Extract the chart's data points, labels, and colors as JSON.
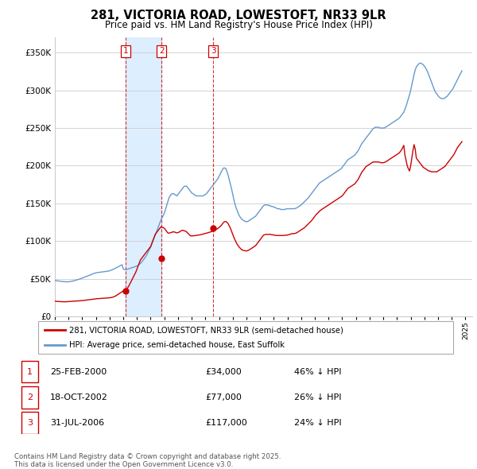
{
  "title": "281, VICTORIA ROAD, LOWESTOFT, NR33 9LR",
  "subtitle": "Price paid vs. HM Land Registry's House Price Index (HPI)",
  "legend_label_red": "281, VICTORIA ROAD, LOWESTOFT, NR33 9LR (semi-detached house)",
  "legend_label_blue": "HPI: Average price, semi-detached house, East Suffolk",
  "footer": "Contains HM Land Registry data © Crown copyright and database right 2025.\nThis data is licensed under the Open Government Licence v3.0.",
  "transactions": [
    {
      "num": 1,
      "date": "25-FEB-2000",
      "price": 34000,
      "pct": "46% ↓ HPI",
      "year_x": 2000.15
    },
    {
      "num": 2,
      "date": "18-OCT-2002",
      "price": 77000,
      "pct": "26% ↓ HPI",
      "year_x": 2002.8
    },
    {
      "num": 3,
      "date": "31-JUL-2006",
      "price": 117000,
      "pct": "24% ↓ HPI",
      "year_x": 2006.58
    }
  ],
  "red_color": "#cc0000",
  "blue_color": "#6699cc",
  "shade_color": "#ddeeff",
  "background": "#ffffff",
  "grid_color": "#cccccc",
  "ylim": [
    0,
    370000
  ],
  "yticks": [
    0,
    50000,
    100000,
    150000,
    200000,
    250000,
    300000,
    350000
  ],
  "xlim": [
    1995.0,
    2025.5
  ],
  "hpi_years": [
    1995.0,
    1995.083,
    1995.167,
    1995.25,
    1995.333,
    1995.417,
    1995.5,
    1995.583,
    1995.667,
    1995.75,
    1995.833,
    1995.917,
    1996.0,
    1996.083,
    1996.167,
    1996.25,
    1996.333,
    1996.417,
    1996.5,
    1996.583,
    1996.667,
    1996.75,
    1996.833,
    1996.917,
    1997.0,
    1997.083,
    1997.167,
    1997.25,
    1997.333,
    1997.417,
    1997.5,
    1997.583,
    1997.667,
    1997.75,
    1997.833,
    1997.917,
    1998.0,
    1998.083,
    1998.167,
    1998.25,
    1998.333,
    1998.417,
    1998.5,
    1998.583,
    1998.667,
    1998.75,
    1998.833,
    1998.917,
    1999.0,
    1999.083,
    1999.167,
    1999.25,
    1999.333,
    1999.417,
    1999.5,
    1999.583,
    1999.667,
    1999.75,
    1999.833,
    1999.917,
    2000.0,
    2000.083,
    2000.167,
    2000.25,
    2000.333,
    2000.417,
    2000.5,
    2000.583,
    2000.667,
    2000.75,
    2000.833,
    2000.917,
    2001.0,
    2001.083,
    2001.167,
    2001.25,
    2001.333,
    2001.417,
    2001.5,
    2001.583,
    2001.667,
    2001.75,
    2001.833,
    2001.917,
    2002.0,
    2002.083,
    2002.167,
    2002.25,
    2002.333,
    2002.417,
    2002.5,
    2002.583,
    2002.667,
    2002.75,
    2002.833,
    2002.917,
    2003.0,
    2003.083,
    2003.167,
    2003.25,
    2003.333,
    2003.417,
    2003.5,
    2003.583,
    2003.667,
    2003.75,
    2003.833,
    2003.917,
    2004.0,
    2004.083,
    2004.167,
    2004.25,
    2004.333,
    2004.417,
    2004.5,
    2004.583,
    2004.667,
    2004.75,
    2004.833,
    2004.917,
    2005.0,
    2005.083,
    2005.167,
    2005.25,
    2005.333,
    2005.417,
    2005.5,
    2005.583,
    2005.667,
    2005.75,
    2005.833,
    2005.917,
    2006.0,
    2006.083,
    2006.167,
    2006.25,
    2006.333,
    2006.417,
    2006.5,
    2006.583,
    2006.667,
    2006.75,
    2006.833,
    2006.917,
    2007.0,
    2007.083,
    2007.167,
    2007.25,
    2007.333,
    2007.417,
    2007.5,
    2007.583,
    2007.667,
    2007.75,
    2007.833,
    2007.917,
    2008.0,
    2008.083,
    2008.167,
    2008.25,
    2008.333,
    2008.417,
    2008.5,
    2008.583,
    2008.667,
    2008.75,
    2008.833,
    2008.917,
    2009.0,
    2009.083,
    2009.167,
    2009.25,
    2009.333,
    2009.417,
    2009.5,
    2009.583,
    2009.667,
    2009.75,
    2009.833,
    2009.917,
    2010.0,
    2010.083,
    2010.167,
    2010.25,
    2010.333,
    2010.417,
    2010.5,
    2010.583,
    2010.667,
    2010.75,
    2010.833,
    2010.917,
    2011.0,
    2011.083,
    2011.167,
    2011.25,
    2011.333,
    2011.417,
    2011.5,
    2011.583,
    2011.667,
    2011.75,
    2011.833,
    2011.917,
    2012.0,
    2012.083,
    2012.167,
    2012.25,
    2012.333,
    2012.417,
    2012.5,
    2012.583,
    2012.667,
    2012.75,
    2012.833,
    2012.917,
    2013.0,
    2013.083,
    2013.167,
    2013.25,
    2013.333,
    2013.417,
    2013.5,
    2013.583,
    2013.667,
    2013.75,
    2013.833,
    2013.917,
    2014.0,
    2014.083,
    2014.167,
    2014.25,
    2014.333,
    2014.417,
    2014.5,
    2014.583,
    2014.667,
    2014.75,
    2014.833,
    2014.917,
    2015.0,
    2015.083,
    2015.167,
    2015.25,
    2015.333,
    2015.417,
    2015.5,
    2015.583,
    2015.667,
    2015.75,
    2015.833,
    2015.917,
    2016.0,
    2016.083,
    2016.167,
    2016.25,
    2016.333,
    2016.417,
    2016.5,
    2016.583,
    2016.667,
    2016.75,
    2016.833,
    2016.917,
    2017.0,
    2017.083,
    2017.167,
    2017.25,
    2017.333,
    2017.417,
    2017.5,
    2017.583,
    2017.667,
    2017.75,
    2017.833,
    2017.917,
    2018.0,
    2018.083,
    2018.167,
    2018.25,
    2018.333,
    2018.417,
    2018.5,
    2018.583,
    2018.667,
    2018.75,
    2018.833,
    2018.917,
    2019.0,
    2019.083,
    2019.167,
    2019.25,
    2019.333,
    2019.417,
    2019.5,
    2019.583,
    2019.667,
    2019.75,
    2019.833,
    2019.917,
    2020.0,
    2020.083,
    2020.167,
    2020.25,
    2020.333,
    2020.417,
    2020.5,
    2020.583,
    2020.667,
    2020.75,
    2020.833,
    2020.917,
    2021.0,
    2021.083,
    2021.167,
    2021.25,
    2021.333,
    2021.417,
    2021.5,
    2021.583,
    2021.667,
    2021.75,
    2021.833,
    2021.917,
    2022.0,
    2022.083,
    2022.167,
    2022.25,
    2022.333,
    2022.417,
    2022.5,
    2022.583,
    2022.667,
    2022.75,
    2022.833,
    2022.917,
    2023.0,
    2023.083,
    2023.167,
    2023.25,
    2023.333,
    2023.417,
    2023.5,
    2023.583,
    2023.667,
    2023.75,
    2023.833,
    2023.917,
    2024.0,
    2024.083,
    2024.167,
    2024.25,
    2024.333,
    2024.417,
    2024.5,
    2024.583,
    2024.667,
    2024.75
  ],
  "hpi_vals": [
    48000,
    47700,
    47400,
    47200,
    47000,
    46800,
    46600,
    46400,
    46300,
    46200,
    46100,
    46100,
    46200,
    46400,
    46600,
    46900,
    47200,
    47600,
    48000,
    48500,
    49000,
    49500,
    50000,
    50500,
    51000,
    51600,
    52200,
    52800,
    53400,
    54000,
    54600,
    55200,
    55800,
    56400,
    57000,
    57500,
    58000,
    58300,
    58500,
    58700,
    58900,
    59100,
    59300,
    59500,
    59700,
    59900,
    60100,
    60300,
    60800,
    61300,
    61900,
    62500,
    63200,
    64000,
    64800,
    65600,
    66400,
    67200,
    68000,
    68800,
    63000,
    62500,
    62000,
    62500,
    63000,
    63500,
    64000,
    64500,
    65000,
    65500,
    66000,
    66500,
    67000,
    68000,
    69000,
    70500,
    72000,
    74000,
    76000,
    78000,
    80500,
    83000,
    86000,
    89000,
    92000,
    96000,
    100000,
    104000,
    108000,
    112000,
    116000,
    120000,
    124000,
    128000,
    131000,
    134000,
    137000,
    142000,
    147000,
    152000,
    157000,
    160000,
    162000,
    163000,
    163000,
    162000,
    161000,
    160000,
    162000,
    164000,
    166000,
    168000,
    170000,
    172000,
    173000,
    173000,
    172000,
    170000,
    168000,
    166000,
    164000,
    163000,
    162000,
    161000,
    160000,
    160000,
    160000,
    160000,
    160000,
    160000,
    160000,
    161000,
    162000,
    163000,
    165000,
    167000,
    169000,
    171000,
    173000,
    175000,
    177000,
    179000,
    181000,
    183000,
    186000,
    189000,
    192000,
    195000,
    197000,
    197000,
    196000,
    192000,
    187000,
    181000,
    175000,
    169000,
    162000,
    155000,
    149000,
    144000,
    140000,
    136000,
    133000,
    131000,
    129000,
    128000,
    127000,
    126000,
    126000,
    126000,
    127000,
    128000,
    129000,
    130000,
    131000,
    132000,
    133000,
    135000,
    137000,
    139000,
    141000,
    143000,
    145000,
    147000,
    148000,
    148000,
    148000,
    148000,
    147000,
    147000,
    146000,
    146000,
    145000,
    145000,
    144000,
    143000,
    143000,
    143000,
    142000,
    142000,
    142000,
    142000,
    142000,
    143000,
    143000,
    143000,
    143000,
    143000,
    143000,
    143000,
    143000,
    143500,
    144000,
    145000,
    146000,
    147000,
    148000,
    149500,
    151000,
    152500,
    154000,
    155500,
    157000,
    159000,
    161000,
    163000,
    165000,
    167000,
    169000,
    171000,
    173000,
    175000,
    177000,
    178000,
    179000,
    180000,
    181000,
    182000,
    183000,
    184000,
    185000,
    186000,
    187000,
    188000,
    189000,
    190000,
    191000,
    192000,
    193000,
    194000,
    195000,
    196000,
    198000,
    200000,
    202000,
    204000,
    206000,
    208000,
    209000,
    210000,
    211000,
    212000,
    213000,
    214000,
    216000,
    218000,
    220000,
    223000,
    226000,
    229000,
    231000,
    233000,
    235000,
    237000,
    239000,
    241000,
    243000,
    245000,
    247000,
    249000,
    250000,
    251000,
    251000,
    251000,
    251000,
    250000,
    250000,
    250000,
    250000,
    250000,
    251000,
    252000,
    253000,
    254000,
    255000,
    256000,
    257000,
    258000,
    259000,
    260000,
    261000,
    262000,
    263000,
    265000,
    267000,
    269000,
    271000,
    275000,
    279000,
    284000,
    289000,
    294000,
    300000,
    307000,
    314000,
    321000,
    327000,
    331000,
    333000,
    335000,
    336000,
    336000,
    335000,
    334000,
    332000,
    330000,
    327000,
    324000,
    320000,
    316000,
    312000,
    308000,
    304000,
    300000,
    297000,
    295000,
    293000,
    291000,
    290000,
    289000,
    289000,
    289000,
    290000,
    291000,
    292000,
    294000,
    296000,
    298000,
    300000,
    302000,
    305000,
    308000,
    311000,
    314000,
    317000,
    320000,
    323000,
    326000
  ],
  "red_years": [
    1995.0,
    1995.083,
    1995.167,
    1995.25,
    1995.333,
    1995.417,
    1995.5,
    1995.583,
    1995.667,
    1995.75,
    1995.833,
    1995.917,
    1996.0,
    1996.083,
    1996.167,
    1996.25,
    1996.333,
    1996.417,
    1996.5,
    1996.583,
    1996.667,
    1996.75,
    1996.833,
    1996.917,
    1997.0,
    1997.083,
    1997.167,
    1997.25,
    1997.333,
    1997.417,
    1997.5,
    1997.583,
    1997.667,
    1997.75,
    1997.833,
    1997.917,
    1998.0,
    1998.083,
    1998.167,
    1998.25,
    1998.333,
    1998.417,
    1998.5,
    1998.583,
    1998.667,
    1998.75,
    1998.833,
    1998.917,
    1999.0,
    1999.083,
    1999.167,
    1999.25,
    1999.333,
    1999.417,
    1999.5,
    1999.583,
    1999.667,
    1999.75,
    1999.833,
    1999.917,
    2000.0,
    2000.083,
    2000.167,
    2000.25,
    2000.333,
    2000.417,
    2000.5,
    2000.583,
    2000.667,
    2000.75,
    2000.833,
    2000.917,
    2001.0,
    2001.083,
    2001.167,
    2001.25,
    2001.333,
    2001.417,
    2001.5,
    2001.583,
    2001.667,
    2001.75,
    2001.833,
    2001.917,
    2002.0,
    2002.083,
    2002.167,
    2002.25,
    2002.333,
    2002.417,
    2002.5,
    2002.583,
    2002.667,
    2002.75,
    2002.833,
    2002.917,
    2003.0,
    2003.083,
    2003.167,
    2003.25,
    2003.333,
    2003.417,
    2003.5,
    2003.583,
    2003.667,
    2003.75,
    2003.833,
    2003.917,
    2004.0,
    2004.083,
    2004.167,
    2004.25,
    2004.333,
    2004.417,
    2004.5,
    2004.583,
    2004.667,
    2004.75,
    2004.833,
    2004.917,
    2005.0,
    2005.083,
    2005.167,
    2005.25,
    2005.333,
    2005.417,
    2005.5,
    2005.583,
    2005.667,
    2005.75,
    2005.833,
    2005.917,
    2006.0,
    2006.083,
    2006.167,
    2006.25,
    2006.333,
    2006.417,
    2006.5,
    2006.583,
    2006.667,
    2006.75,
    2006.833,
    2006.917,
    2007.0,
    2007.083,
    2007.167,
    2007.25,
    2007.333,
    2007.417,
    2007.5,
    2007.583,
    2007.667,
    2007.75,
    2007.833,
    2007.917,
    2008.0,
    2008.083,
    2008.167,
    2008.25,
    2008.333,
    2008.417,
    2008.5,
    2008.583,
    2008.667,
    2008.75,
    2008.833,
    2008.917,
    2009.0,
    2009.083,
    2009.167,
    2009.25,
    2009.333,
    2009.417,
    2009.5,
    2009.583,
    2009.667,
    2009.75,
    2009.833,
    2009.917,
    2010.0,
    2010.083,
    2010.167,
    2010.25,
    2010.333,
    2010.417,
    2010.5,
    2010.583,
    2010.667,
    2010.75,
    2010.833,
    2010.917,
    2011.0,
    2011.083,
    2011.167,
    2011.25,
    2011.333,
    2011.417,
    2011.5,
    2011.583,
    2011.667,
    2011.75,
    2011.833,
    2011.917,
    2012.0,
    2012.083,
    2012.167,
    2012.25,
    2012.333,
    2012.417,
    2012.5,
    2012.583,
    2012.667,
    2012.75,
    2012.833,
    2012.917,
    2013.0,
    2013.083,
    2013.167,
    2013.25,
    2013.333,
    2013.417,
    2013.5,
    2013.583,
    2013.667,
    2013.75,
    2013.833,
    2013.917,
    2014.0,
    2014.083,
    2014.167,
    2014.25,
    2014.333,
    2014.417,
    2014.5,
    2014.583,
    2014.667,
    2014.75,
    2014.833,
    2014.917,
    2015.0,
    2015.083,
    2015.167,
    2015.25,
    2015.333,
    2015.417,
    2015.5,
    2015.583,
    2015.667,
    2015.75,
    2015.833,
    2015.917,
    2016.0,
    2016.083,
    2016.167,
    2016.25,
    2016.333,
    2016.417,
    2016.5,
    2016.583,
    2016.667,
    2016.75,
    2016.833,
    2016.917,
    2017.0,
    2017.083,
    2017.167,
    2017.25,
    2017.333,
    2017.417,
    2017.5,
    2017.583,
    2017.667,
    2017.75,
    2017.833,
    2017.917,
    2018.0,
    2018.083,
    2018.167,
    2018.25,
    2018.333,
    2018.417,
    2018.5,
    2018.583,
    2018.667,
    2018.75,
    2018.833,
    2018.917,
    2019.0,
    2019.083,
    2019.167,
    2019.25,
    2019.333,
    2019.417,
    2019.5,
    2019.583,
    2019.667,
    2019.75,
    2019.833,
    2019.917,
    2020.0,
    2020.083,
    2020.167,
    2020.25,
    2020.333,
    2020.417,
    2020.5,
    2020.583,
    2020.667,
    2020.75,
    2020.833,
    2020.917,
    2021.0,
    2021.083,
    2021.167,
    2021.25,
    2021.333,
    2021.417,
    2021.5,
    2021.583,
    2021.667,
    2021.75,
    2021.833,
    2021.917,
    2022.0,
    2022.083,
    2022.167,
    2022.25,
    2022.333,
    2022.417,
    2022.5,
    2022.583,
    2022.667,
    2022.75,
    2022.833,
    2022.917,
    2023.0,
    2023.083,
    2023.167,
    2023.25,
    2023.333,
    2023.417,
    2023.5,
    2023.583,
    2023.667,
    2023.75,
    2023.833,
    2023.917,
    2024.0,
    2024.083,
    2024.167,
    2024.25,
    2024.333,
    2024.417,
    2024.5,
    2024.583,
    2024.667,
    2024.75
  ],
  "red_vals": [
    20500,
    20300,
    20100,
    20000,
    19900,
    19800,
    19700,
    19600,
    19600,
    19600,
    19700,
    19800,
    19900,
    20000,
    20100,
    20200,
    20300,
    20400,
    20500,
    20600,
    20700,
    20800,
    20900,
    21000,
    21200,
    21400,
    21600,
    21800,
    22000,
    22200,
    22400,
    22600,
    22800,
    23000,
    23200,
    23400,
    23600,
    23700,
    23800,
    23900,
    24000,
    24100,
    24200,
    24300,
    24400,
    24500,
    24600,
    24700,
    24900,
    25100,
    25400,
    25800,
    26400,
    27100,
    28000,
    29000,
    30000,
    31000,
    32000,
    33000,
    34000,
    34000,
    34000,
    36000,
    38500,
    41000,
    44000,
    47000,
    50000,
    53000,
    56000,
    59000,
    63000,
    67000,
    71000,
    75000,
    77000,
    79000,
    81000,
    83000,
    85000,
    87000,
    89000,
    91000,
    93000,
    97000,
    101000,
    105000,
    109000,
    111000,
    113000,
    115000,
    117000,
    119000,
    118500,
    118000,
    117000,
    115000,
    113000,
    111000,
    110500,
    111000,
    111500,
    112000,
    112500,
    112000,
    111500,
    111000,
    111500,
    112000,
    113000,
    114000,
    114500,
    114000,
    113500,
    113000,
    111500,
    110000,
    108500,
    107000,
    107000,
    107000,
    107200,
    107400,
    107600,
    107800,
    108000,
    108300,
    108600,
    109000,
    109400,
    109800,
    110200,
    110600,
    111000,
    111500,
    112000,
    112500,
    113000,
    113500,
    114000,
    115000,
    116000,
    117000,
    118000,
    119500,
    121000,
    123000,
    125000,
    126000,
    126000,
    125000,
    123000,
    120000,
    117000,
    113000,
    109000,
    105000,
    101500,
    98500,
    95500,
    93500,
    91500,
    90000,
    88500,
    88000,
    87500,
    87200,
    87000,
    87500,
    88000,
    89000,
    90000,
    91000,
    92000,
    93000,
    94000,
    96000,
    98000,
    100000,
    102000,
    104000,
    106000,
    108000,
    108500,
    109000,
    109000,
    109000,
    109000,
    109000,
    108500,
    108500,
    108000,
    108000,
    107500,
    107500,
    107500,
    107500,
    107500,
    107500,
    107500,
    107500,
    108000,
    108000,
    108000,
    108500,
    109000,
    109500,
    110000,
    110000,
    110000,
    110500,
    111000,
    112000,
    113000,
    114000,
    115000,
    116000,
    117000,
    118000,
    119500,
    121000,
    122500,
    124000,
    125500,
    127000,
    129000,
    131000,
    133000,
    135000,
    136500,
    138000,
    139500,
    141000,
    142000,
    143000,
    144000,
    145000,
    146000,
    147000,
    148000,
    149000,
    150000,
    151000,
    152000,
    153000,
    154000,
    155000,
    156000,
    157000,
    158000,
    159000,
    160000,
    162000,
    164000,
    166000,
    168000,
    170000,
    171000,
    172000,
    173000,
    174000,
    175000,
    176000,
    178000,
    180000,
    182000,
    185000,
    188000,
    191000,
    193000,
    195000,
    197000,
    199000,
    200000,
    201000,
    202000,
    203000,
    204000,
    205000,
    205000,
    205000,
    205000,
    205000,
    205000,
    204500,
    204000,
    204000,
    204000,
    204500,
    205000,
    206000,
    207000,
    208000,
    209000,
    210000,
    211000,
    212000,
    213000,
    214000,
    215000,
    216000,
    217000,
    219000,
    221000,
    224000,
    227000,
    214000,
    207000,
    200000,
    196000,
    193000,
    200000,
    210000,
    220000,
    228000,
    222000,
    210000,
    208000,
    206000,
    204000,
    202000,
    200000,
    198000,
    197000,
    196000,
    195000,
    194000,
    193000,
    193000,
    192000,
    192000,
    192000,
    192000,
    192000,
    192000,
    193000,
    194000,
    195000,
    196000,
    197000,
    198000,
    199000,
    201000,
    203000,
    205000,
    207000,
    209000,
    211000,
    213000,
    215000,
    218000,
    221000,
    224000,
    226000,
    228000,
    230000,
    232000
  ]
}
